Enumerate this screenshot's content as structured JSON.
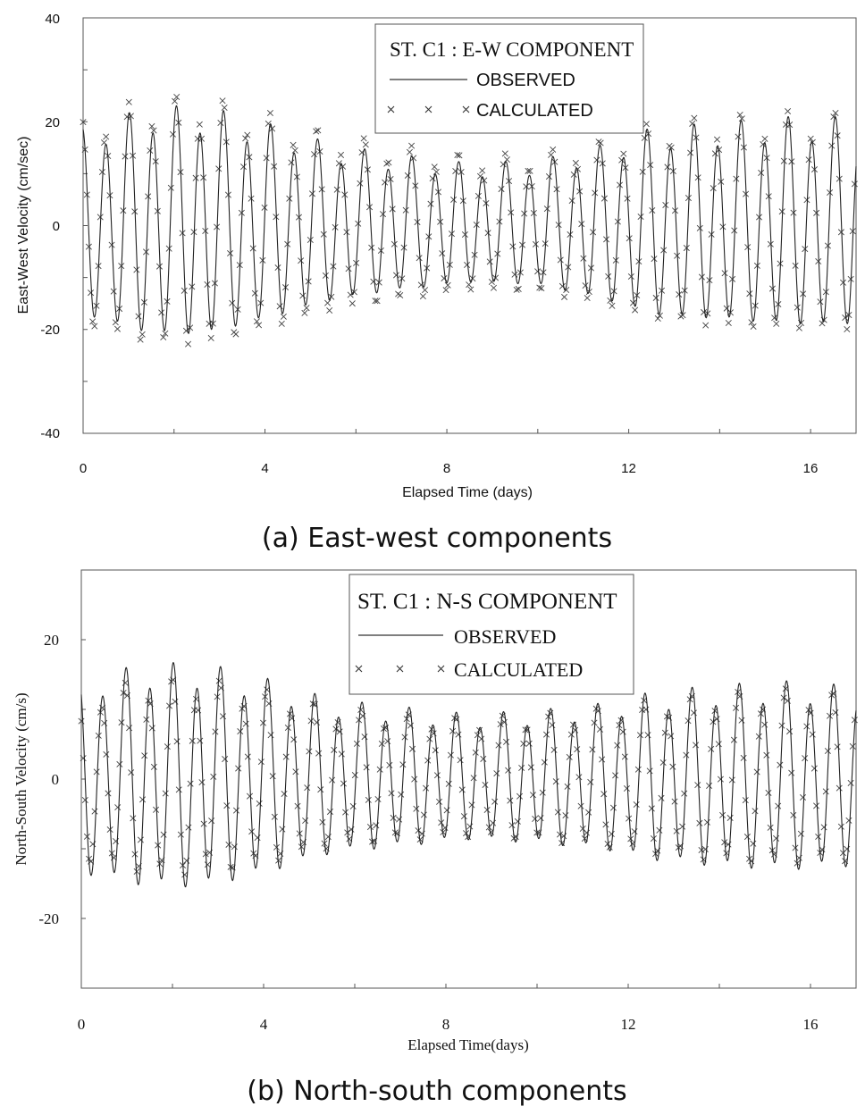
{
  "chart_data": [
    {
      "type": "line",
      "panel": "a",
      "caption": "(a) East-west components",
      "legend_title": "ST. C1 : E-W COMPONENT",
      "legend_placement": "top-center",
      "xlabel": "Elapsed Time (days)",
      "ylabel": "East-West Velocity (cm/sec)",
      "xlim": [
        0,
        17
      ],
      "ylim": [
        -40,
        40
      ],
      "x_ticks": [
        0,
        4,
        8,
        12,
        16
      ],
      "y_ticks": [
        40,
        20,
        0,
        -20,
        -40
      ],
      "y_tick_labels": [
        "40",
        "20",
        "0",
        "-20",
        "-40"
      ],
      "series": [
        {
          "name": "OBSERVED",
          "style": "line",
          "tidal_model": {
            "period_days": 0.5175,
            "phase": 0.2,
            "amplitude_envelope": {
              "t": [
                0,
                1.5,
                2.7,
                4,
                5.5,
                7,
                8.5,
                10,
                11.5,
                12.5,
                14,
                15.5,
                16.6
              ],
              "amp": [
                18,
                22,
                22,
                19,
                15,
                13,
                11.5,
                12,
                15,
                18,
                19,
                20,
                20
              ]
            }
          }
        },
        {
          "name": "CALCULATED",
          "style": "x-marker",
          "tidal_model": {
            "period_days": 0.5175,
            "phase": 0.32,
            "amplitude_envelope": {
              "t": [
                0,
                1.5,
                2.7,
                4,
                5.5,
                7,
                8.5,
                10,
                11.5,
                12.5,
                14,
                15.5,
                16.6
              ],
              "amp": [
                20,
                24,
                24,
                21,
                17,
                15,
                13,
                13.5,
                16,
                19,
                20.5,
                21,
                21
              ]
            }
          }
        }
      ]
    },
    {
      "type": "line",
      "panel": "b",
      "caption": "(b) North-south components",
      "legend_title": "ST. C1 : N-S COMPONENT",
      "legend_placement": "top-center",
      "xlabel": "Elapsed Time(days)",
      "ylabel": "North-South Velocity (cm/s)",
      "xlim": [
        0,
        17
      ],
      "ylim": [
        -30,
        30
      ],
      "x_ticks": [
        0,
        4,
        8,
        12,
        16
      ],
      "y_ticks": [
        20,
        0,
        -20
      ],
      "y_tick_labels": [
        "20",
        "0",
        "-20"
      ],
      "series": [
        {
          "name": "OBSERVED",
          "style": "line",
          "tidal_model": {
            "period_days": 0.5175,
            "phase": 0.6,
            "amplitude_envelope": {
              "t": [
                0,
                1.5,
                2.7,
                4,
                5.5,
                7,
                8.5,
                10,
                11.5,
                12.5,
                14,
                15.5,
                16.6
              ],
              "amp": [
                14,
                16,
                16,
                14,
                11,
                10,
                9,
                9.5,
                10.5,
                12,
                13,
                13.5,
                13
              ]
            }
          }
        },
        {
          "name": "CALCULATED",
          "style": "x-marker",
          "tidal_model": {
            "period_days": 0.5175,
            "phase": 0.85,
            "amplitude_envelope": {
              "t": [
                0,
                1.5,
                2.7,
                4,
                5.5,
                7,
                8.5,
                10,
                11.5,
                12.5,
                14,
                15.5,
                16.6
              ],
              "amp": [
                12,
                14,
                14,
                12.5,
                10,
                9,
                8.5,
                9,
                10,
                11,
                12,
                12.5,
                12
              ]
            }
          }
        }
      ]
    }
  ]
}
